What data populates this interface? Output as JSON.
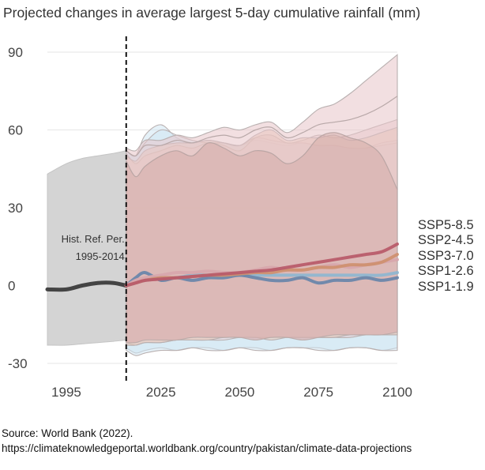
{
  "title": "Projected changes in average largest 5-day cumulative rainfall (mm)",
  "source_line1": "Source: World Bank (2022).",
  "source_line2": "https://climateknowledgeportal.worldbank.org/country/pakistan/climate-data-projections",
  "chart_data": {
    "type": "line",
    "title": "Projected changes in average largest 5-day cumulative rainfall (mm)",
    "xlabel": "",
    "ylabel": "",
    "xlim": [
      1995,
      2100
    ],
    "ylim": [
      -32,
      95
    ],
    "x_ticks": [
      "1995",
      "2025",
      "2050",
      "2075",
      "2100"
    ],
    "y_ticks": [
      "90",
      "60",
      "30",
      "0",
      "-30"
    ],
    "grid": "horizontal",
    "reference_line": {
      "x": 2014,
      "label_line1": "Hist. Ref. Per.",
      "label_line2": "1995-2014"
    },
    "historical": {
      "x": [
        1989,
        1995,
        2000,
        2005,
        2010,
        2014
      ],
      "mean": [
        -1.5,
        -1.5,
        0,
        1,
        1,
        0
      ],
      "upper": [
        43,
        47,
        49,
        50,
        51,
        52
      ],
      "lower": [
        -23,
        -23,
        -22.5,
        -22,
        -21.5,
        -21
      ],
      "color": "#444444",
      "band_color": "#d4d4d4"
    },
    "x": [
      2014,
      2017,
      2020,
      2025,
      2030,
      2035,
      2040,
      2045,
      2050,
      2055,
      2060,
      2065,
      2070,
      2075,
      2080,
      2085,
      2090,
      2095,
      2100
    ],
    "series": [
      {
        "name": "SSP5-8.5",
        "color": "#b85c6a",
        "values": [
          0,
          1,
          2,
          2.5,
          3,
          3.5,
          4,
          4.5,
          5,
          5.5,
          6,
          7,
          8,
          9,
          10,
          11,
          12,
          13,
          16
        ],
        "upper": [
          53,
          52,
          56,
          56,
          58,
          57,
          59,
          61,
          60,
          62,
          63,
          59,
          63,
          68,
          70,
          74,
          79,
          84,
          89
        ],
        "lower": [
          -22,
          -22,
          -21,
          -21,
          -21,
          -20,
          -20,
          -20,
          -20,
          -21,
          -20,
          -20,
          -21,
          -20,
          -19,
          -19,
          -19,
          -19,
          -18
        ],
        "band_color": "#e8c4c8",
        "upper_runs": [
          [
            48,
            42,
            46,
            50,
            52,
            50,
            55,
            53,
            50,
            52,
            51,
            47,
            50,
            57,
            59,
            57,
            55,
            50,
            37
          ],
          [
            52,
            50,
            54,
            54,
            56,
            55,
            57,
            58,
            57,
            60,
            61,
            57,
            59,
            62,
            63,
            64,
            66,
            69,
            73
          ]
        ]
      },
      {
        "name": "SSP2-4.5",
        "color": "#cf9070",
        "values": [
          0,
          1,
          2,
          3,
          3,
          3.5,
          4,
          4,
          4.5,
          5,
          5,
          6,
          6,
          7,
          7,
          8,
          8,
          9,
          12
        ],
        "upper": [
          50,
          48,
          52,
          54,
          55,
          55,
          56,
          55,
          54,
          58,
          60,
          56,
          57,
          57,
          58,
          56,
          57,
          59,
          61
        ],
        "lower": [
          -23,
          -23,
          -22,
          -22,
          -21,
          -21,
          -21,
          -20,
          -20,
          -20,
          -21,
          -20,
          -20,
          -20,
          -20,
          -19,
          -19,
          -19,
          -19
        ],
        "band_color": "#e9c6b4"
      },
      {
        "name": "SSP3-7.0",
        "color": "#d7a6ac",
        "values": [
          0,
          2,
          3,
          4,
          5,
          5,
          5.5,
          5,
          5,
          6,
          7,
          6,
          6,
          7,
          8,
          7,
          8,
          9,
          10
        ],
        "upper": [
          51,
          47,
          50,
          52,
          54,
          53,
          55,
          54,
          52,
          57,
          58,
          55,
          56,
          58,
          57,
          58,
          60,
          62,
          64
        ],
        "lower": [
          -22,
          -23,
          -22,
          -22,
          -21,
          -21,
          -21,
          -21,
          -20,
          -20,
          -20,
          -20,
          -20,
          -20,
          -20,
          -20,
          -19,
          -19,
          -19
        ],
        "band_color": "#ebd0d4"
      },
      {
        "name": "SSP1-2.6",
        "color": "#8fb6d0",
        "values": [
          0,
          1,
          2,
          3,
          3,
          4,
          4,
          4,
          4,
          4,
          4,
          4,
          4,
          4,
          4,
          4,
          4,
          4,
          5
        ],
        "upper": [
          52,
          50,
          55,
          60,
          58,
          56,
          55,
          55,
          54,
          57,
          56,
          55,
          55,
          54,
          54,
          53,
          53,
          54,
          55
        ],
        "lower": [
          -25,
          -27,
          -26,
          -25,
          -25,
          -24,
          -25,
          -25,
          -24,
          -25,
          -25,
          -24,
          -24,
          -25,
          -25,
          -24,
          -24,
          -25,
          -25
        ],
        "band_color": "#cfe6f3"
      },
      {
        "name": "SSP1-1.9",
        "color": "#6a86aa",
        "values": [
          0,
          3,
          5,
          2,
          3,
          2,
          3,
          3,
          4,
          3,
          2,
          2,
          3,
          1,
          2,
          2,
          3,
          2,
          3
        ],
        "upper": [
          52,
          50,
          58,
          62,
          57,
          55,
          56,
          55,
          54,
          56,
          55,
          54,
          55,
          54,
          54,
          53,
          53,
          55,
          56
        ],
        "lower": [
          -24,
          -26,
          -25,
          -24,
          -25,
          -24,
          -24,
          -25,
          -24,
          -24,
          -25,
          -24,
          -24,
          -24,
          -25,
          -24,
          -24,
          -25,
          -24
        ],
        "band_color": "#cfe6f3"
      }
    ]
  }
}
